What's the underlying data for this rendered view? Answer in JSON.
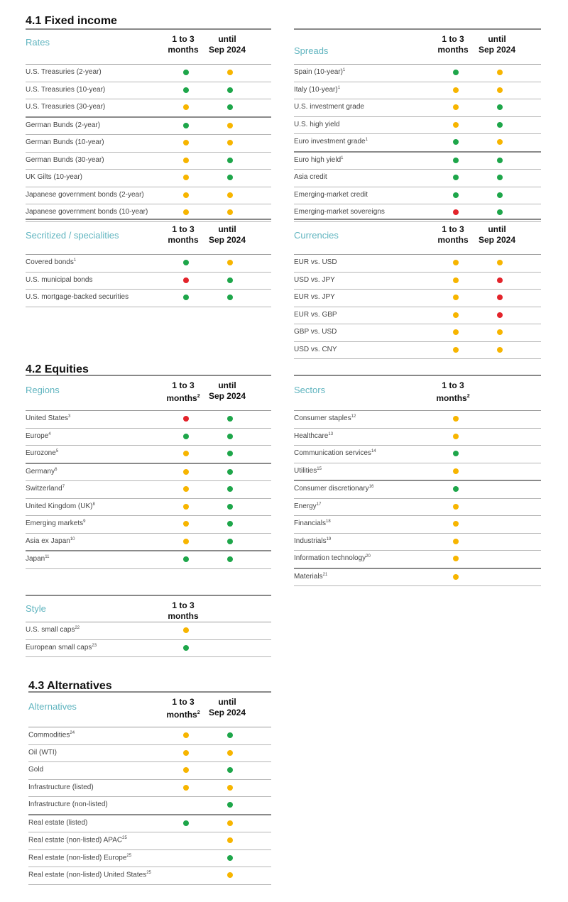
{
  "sections": {
    "fixed_income": "4.1 Fixed income",
    "equities": "4.2 Equities",
    "alternatives": "4.3 Alternatives"
  },
  "col_labels": {
    "short_line1": "1 to 3",
    "short_line2": "months",
    "long_line1": "until",
    "long_line2": "Sep 2024",
    "fn2": "2"
  },
  "legend_colors": {
    "positive": "#1ea64a",
    "neutral": "#f7b500",
    "negative": "#e3242b"
  },
  "tables": {
    "rates": {
      "category": "Rates",
      "rows": [
        {
          "label": "U.S. Treasuries (2-year)",
          "short": "green",
          "long": "yellow"
        },
        {
          "label": "U.S. Treasuries (10-year)",
          "short": "green",
          "long": "green"
        },
        {
          "label": "U.S. Treasuries (30-year)",
          "short": "yellow",
          "long": "green"
        },
        {
          "label": "German Bunds (2-year)",
          "short": "green",
          "long": "yellow"
        },
        {
          "label": "German Bunds (10-year)",
          "short": "yellow",
          "long": "yellow"
        },
        {
          "label": "German Bunds (30-year)",
          "short": "yellow",
          "long": "green"
        },
        {
          "label": "UK Gilts (10-year)",
          "short": "yellow",
          "long": "green"
        },
        {
          "label": "Japanese government bonds (2-year)",
          "short": "yellow",
          "long": "yellow"
        },
        {
          "label": "Japanese government bonds (10-year)",
          "short": "yellow",
          "long": "yellow"
        }
      ]
    },
    "spreads": {
      "category": "Spreads",
      "rows": [
        {
          "label": "Spain (10-year)",
          "fn": "1",
          "short": "green",
          "long": "yellow"
        },
        {
          "label": "Italy (10-year)",
          "fn": "1",
          "short": "yellow",
          "long": "yellow"
        },
        {
          "label": "U.S. investment grade",
          "short": "yellow",
          "long": "green"
        },
        {
          "label": "U.S. high yield",
          "short": "yellow",
          "long": "green"
        },
        {
          "label": "Euro investment grade",
          "fn": "1",
          "short": "green",
          "long": "yellow"
        },
        {
          "label": "Euro high yield",
          "fn": "1",
          "short": "green",
          "long": "green"
        },
        {
          "label": "Asia credit",
          "short": "green",
          "long": "green"
        },
        {
          "label": "Emerging-market credit",
          "short": "green",
          "long": "green"
        },
        {
          "label": "Emerging-market sovereigns",
          "short": "red",
          "long": "green"
        }
      ]
    },
    "securitized": {
      "category": "Secritized / specialities",
      "rows": [
        {
          "label": "Covered bonds",
          "fn": "1",
          "short": "green",
          "long": "yellow"
        },
        {
          "label": "U.S. municipal bonds",
          "short": "red",
          "long": "green"
        },
        {
          "label": "U.S. mortgage-backed securities",
          "short": "green",
          "long": "green"
        }
      ]
    },
    "currencies": {
      "category": "Currencies",
      "rows": [
        {
          "label": "EUR vs. USD",
          "short": "yellow",
          "long": "yellow"
        },
        {
          "label": "USD vs. JPY",
          "short": "yellow",
          "long": "red"
        },
        {
          "label": "EUR vs. JPY",
          "short": "yellow",
          "long": "red"
        },
        {
          "label": "EUR vs. GBP",
          "short": "yellow",
          "long": "red"
        },
        {
          "label": "GBP vs. USD",
          "short": "yellow",
          "long": "yellow"
        },
        {
          "label": "USD vs. CNY",
          "short": "yellow",
          "long": "yellow"
        }
      ]
    },
    "regions": {
      "category": "Regions",
      "rows": [
        {
          "label": "United States",
          "fn": "3",
          "short": "red",
          "long": "green"
        },
        {
          "label": "Europe",
          "fn": "4",
          "short": "green",
          "long": "green"
        },
        {
          "label": "Eurozone",
          "fn": "5",
          "short": "yellow",
          "long": "green"
        },
        {
          "label": "Germany",
          "fn": "6",
          "short": "yellow",
          "long": "green"
        },
        {
          "label": "Switzerland",
          "fn": "7",
          "short": "yellow",
          "long": "green"
        },
        {
          "label": "United Kingdom (UK)",
          "fn": "8",
          "short": "yellow",
          "long": "green"
        },
        {
          "label": "Emerging markets",
          "fn": "9",
          "short": "yellow",
          "long": "green"
        },
        {
          "label": "Asia ex Japan",
          "fn": "10",
          "short": "yellow",
          "long": "green"
        },
        {
          "label": "Japan",
          "fn": "11",
          "short": "green",
          "long": "green"
        }
      ]
    },
    "sectors": {
      "category": "Sectors",
      "rows": [
        {
          "label": "Consumer staples",
          "fn": "12",
          "short": "yellow"
        },
        {
          "label": "Healthcare",
          "fn": "13",
          "short": "yellow"
        },
        {
          "label": "Communication services",
          "fn": "14",
          "short": "green"
        },
        {
          "label": "Utilities",
          "fn": "15",
          "short": "yellow"
        },
        {
          "label": "Consumer discretionary",
          "fn": "16",
          "short": "green"
        },
        {
          "label": "Energy",
          "fn": "17",
          "short": "yellow"
        },
        {
          "label": "Financials",
          "fn": "18",
          "short": "yellow"
        },
        {
          "label": "Industrials",
          "fn": "19",
          "short": "yellow"
        },
        {
          "label": "Information technology",
          "fn": "20",
          "short": "yellow"
        },
        {
          "label": "Materials",
          "fn": "21",
          "short": "yellow"
        }
      ]
    },
    "style": {
      "category": "Style",
      "rows": [
        {
          "label": "U.S. small caps",
          "fn": "22",
          "short": "yellow"
        },
        {
          "label": "European small caps",
          "fn": "23",
          "short": "green"
        }
      ]
    },
    "alternatives": {
      "category": "Alternatives",
      "rows": [
        {
          "label": "Commodities",
          "fn": "24",
          "short": "yellow",
          "long": "green"
        },
        {
          "label": "Oil (WTI)",
          "short": "yellow",
          "long": "yellow"
        },
        {
          "label": "Gold",
          "short": "yellow",
          "long": "green"
        },
        {
          "label": "Infrastructure (listed)",
          "short": "yellow",
          "long": "yellow"
        },
        {
          "label": "Infrastructure (non-listed)",
          "long": "green"
        },
        {
          "label": "Real estate (listed)",
          "short": "green",
          "long": "yellow"
        },
        {
          "label": "Real estate (non-listed) APAC",
          "fn": "25",
          "long": "yellow"
        },
        {
          "label": "Real estate (non-listed) Europe",
          "fn": "25",
          "long": "green"
        },
        {
          "label": "Real estate (non-listed) United States",
          "fn": "25",
          "long": "yellow"
        }
      ]
    }
  }
}
